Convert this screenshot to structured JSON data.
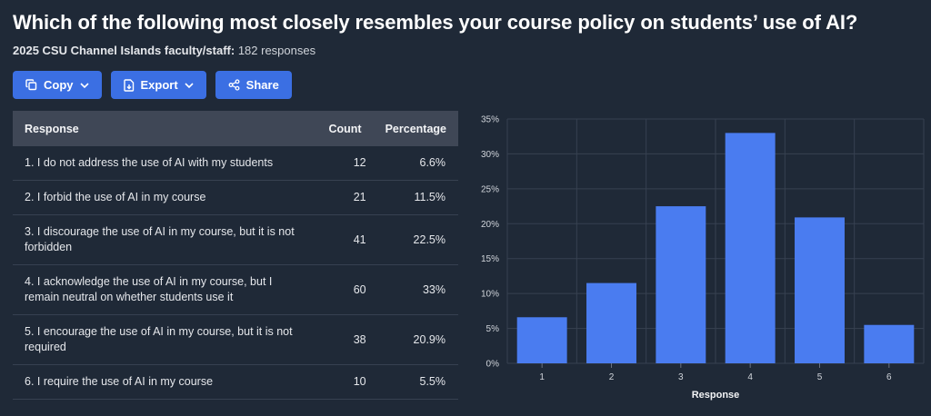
{
  "header": {
    "title": "Which of the following most closely resembles your course policy on students’ use of AI?",
    "org": "2025 CSU Channel Islands faculty/staff:",
    "responses": "182 responses"
  },
  "toolbar": {
    "copy_label": "Copy",
    "export_label": "Export",
    "share_label": "Share"
  },
  "table": {
    "headers": {
      "response": "Response",
      "count": "Count",
      "percentage": "Percentage"
    },
    "rows": [
      {
        "response": "1. I do not address the use of AI with my students",
        "count": "12",
        "percentage": "6.6%"
      },
      {
        "response": "2. I forbid the use of AI in my course",
        "count": "21",
        "percentage": "11.5%"
      },
      {
        "response": "3. I discourage the use of AI in my course, but it is not forbidden",
        "count": "41",
        "percentage": "22.5%"
      },
      {
        "response": "4. I acknowledge the use of AI in my course, but I remain neutral on whether students use it",
        "count": "60",
        "percentage": "33%"
      },
      {
        "response": "5. I encourage the use of AI in my course, but it is not required",
        "count": "38",
        "percentage": "20.9%"
      },
      {
        "response": "6. I require the use of AI in my course",
        "count": "10",
        "percentage": "5.5%"
      }
    ]
  },
  "colors": {
    "background": "#1f2937",
    "accent": "#3b6fe3",
    "bar": "#4a7cf0"
  },
  "chart_data": {
    "type": "bar",
    "categories": [
      "1",
      "2",
      "3",
      "4",
      "5",
      "6"
    ],
    "values": [
      6.6,
      11.5,
      22.5,
      33,
      20.9,
      5.5
    ],
    "xlabel": "Response",
    "ylabel": "",
    "ylim": [
      0,
      35
    ],
    "yticks": [
      "0%",
      "5%",
      "10%",
      "15%",
      "20%",
      "25%",
      "30%",
      "35%"
    ],
    "grid": true
  }
}
